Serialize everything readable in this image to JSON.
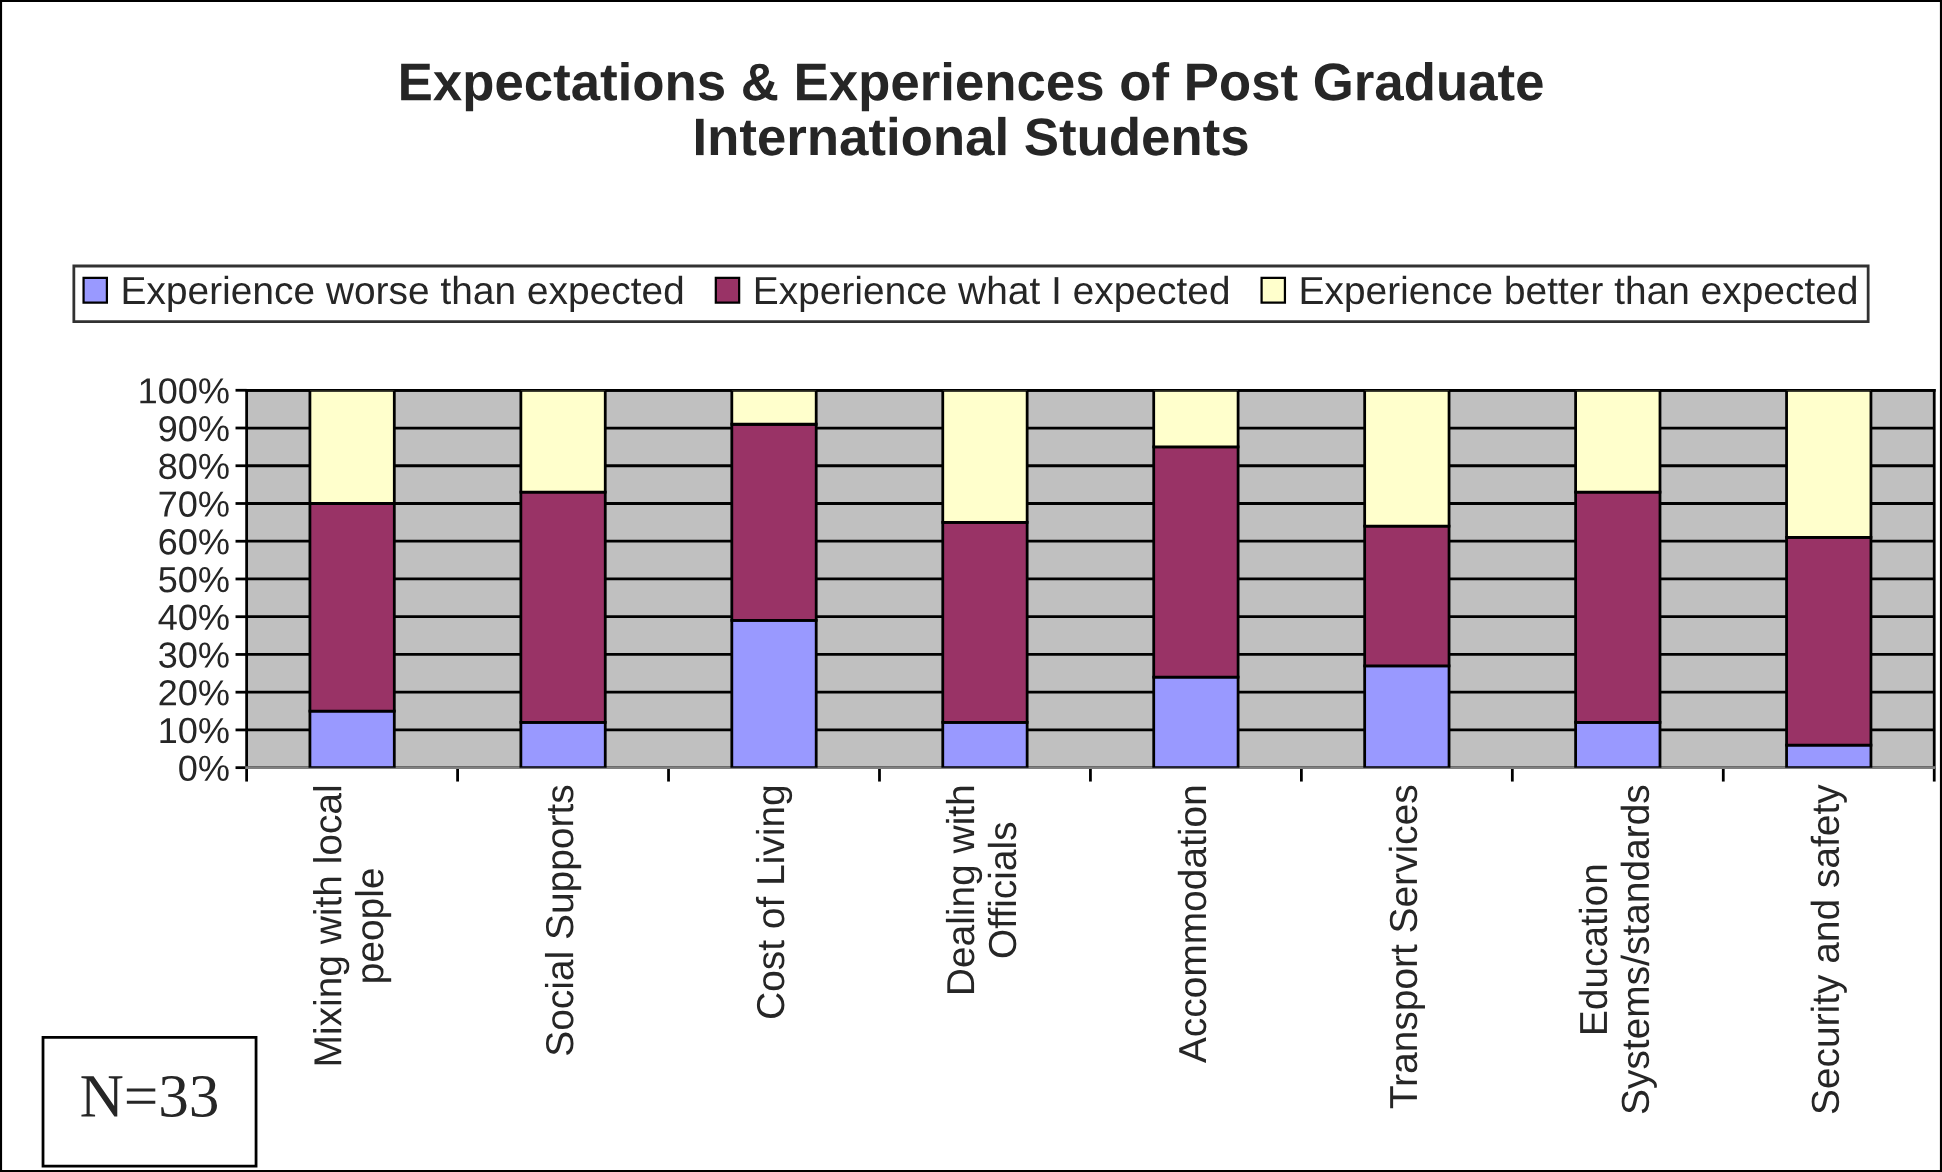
{
  "chart_data": {
    "type": "bar",
    "title": "Expectations & Experiences of Post Graduate\nInternational Students",
    "categories": [
      "Mixing with local\npeople",
      "Social Supports",
      "Cost of Living",
      "Dealing with\nOfficials",
      "Accommodation",
      "Transport Services",
      "Education\nSystems/standards",
      "Security and safety"
    ],
    "series": [
      {
        "name": "Experience worse than expected",
        "color": "#9999ff",
        "values": [
          15,
          12,
          39,
          12,
          24,
          27,
          12,
          6
        ]
      },
      {
        "name": "Experience what I expected",
        "color": "#993366",
        "values": [
          55,
          61,
          52,
          53,
          61,
          37,
          61,
          55
        ]
      },
      {
        "name": "Experience better than expected",
        "color": "#ffffcc",
        "values": [
          30,
          27,
          9,
          35,
          15,
          36,
          27,
          39
        ]
      }
    ],
    "stacked": true,
    "ylim": [
      0,
      100
    ],
    "yticks": [
      {
        "value": 0,
        "label": "0%"
      },
      {
        "value": 10,
        "label": "10%"
      },
      {
        "value": 20,
        "label": "20%"
      },
      {
        "value": 30,
        "label": "30%"
      },
      {
        "value": 40,
        "label": "40%"
      },
      {
        "value": 50,
        "label": "50%"
      },
      {
        "value": 60,
        "label": "60%"
      },
      {
        "value": 70,
        "label": "70%"
      },
      {
        "value": 80,
        "label": "80%"
      },
      {
        "value": 90,
        "label": "90%"
      },
      {
        "value": 100,
        "label": "100%"
      }
    ],
    "grid": "y",
    "legend": "top",
    "annotations": [
      "N=33"
    ]
  }
}
